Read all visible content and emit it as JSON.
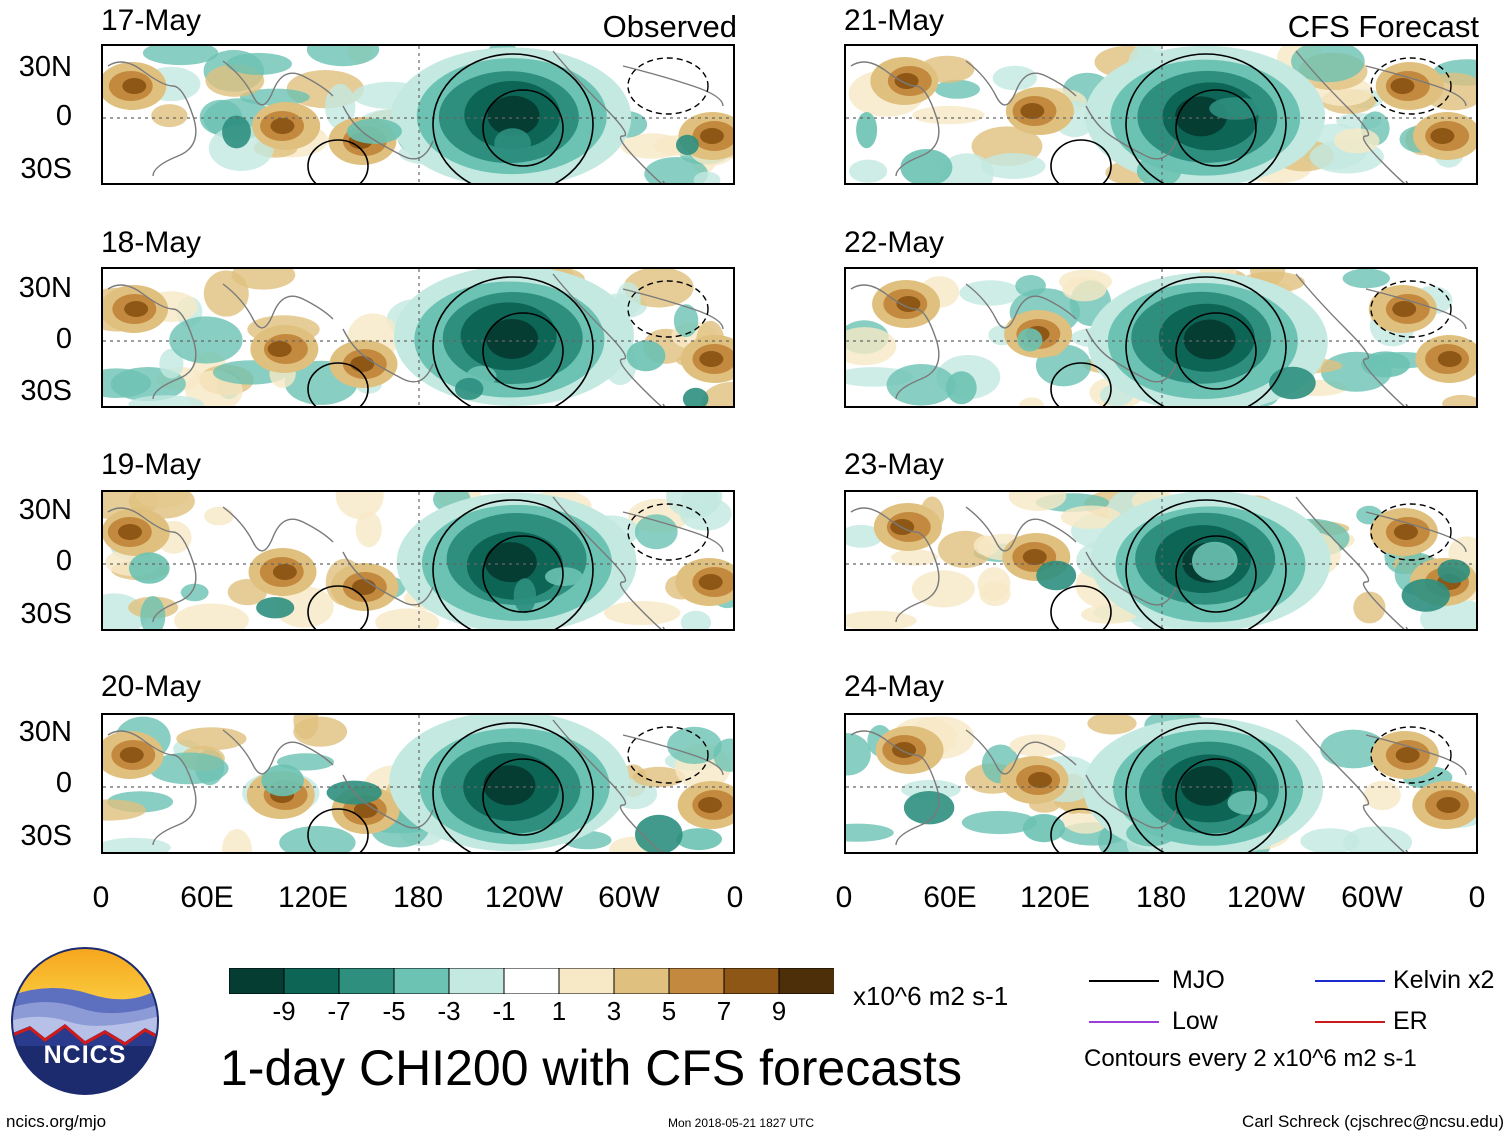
{
  "panels": {
    "left": [
      {
        "date": "17-May",
        "tag": "Observed"
      },
      {
        "date": "18-May",
        "tag": ""
      },
      {
        "date": "19-May",
        "tag": ""
      },
      {
        "date": "20-May",
        "tag": ""
      }
    ],
    "right": [
      {
        "date": "21-May",
        "tag": "CFS Forecast"
      },
      {
        "date": "22-May",
        "tag": ""
      },
      {
        "date": "23-May",
        "tag": ""
      },
      {
        "date": "24-May",
        "tag": ""
      }
    ]
  },
  "axes": {
    "lat_labels": [
      "30N",
      "0",
      "30S"
    ],
    "lon_labels": [
      "0",
      "60E",
      "120E",
      "180",
      "120W",
      "60W",
      "0"
    ]
  },
  "colorbar": {
    "units": "x10^6 m2 s-1",
    "labels": [
      "-9",
      "-7",
      "-5",
      "-3",
      "-1",
      "1",
      "3",
      "5",
      "7",
      "9"
    ],
    "colors": [
      "#063d33",
      "#0d6556",
      "#2e8f7f",
      "#6cc2b3",
      "#c3e9e1",
      "#ffffff",
      "#f7e9c6",
      "#e0c07e",
      "#c38a3f",
      "#8e5715",
      "#4d2f0a"
    ]
  },
  "legend": {
    "mjo": "MJO",
    "kelvin": "Kelvin x2",
    "low": "Low",
    "er": "ER",
    "contours_note": "Contours every 2 x10^6 m2 s-1",
    "mjo_color": "#000000",
    "kelvin_color": "#1a2acc",
    "low_color": "#9a3fd6",
    "er_color": "#cc1a1a"
  },
  "title": "1-day CHI200 with CFS forecasts",
  "logo": {
    "text": "NCICS"
  },
  "footer": {
    "url": "ncics.org/mjo",
    "timestamp": "Mon 2018-05-21 1827 UTC",
    "author": "Carl Schreck (cjschrec@ncsu.edu)"
  }
}
